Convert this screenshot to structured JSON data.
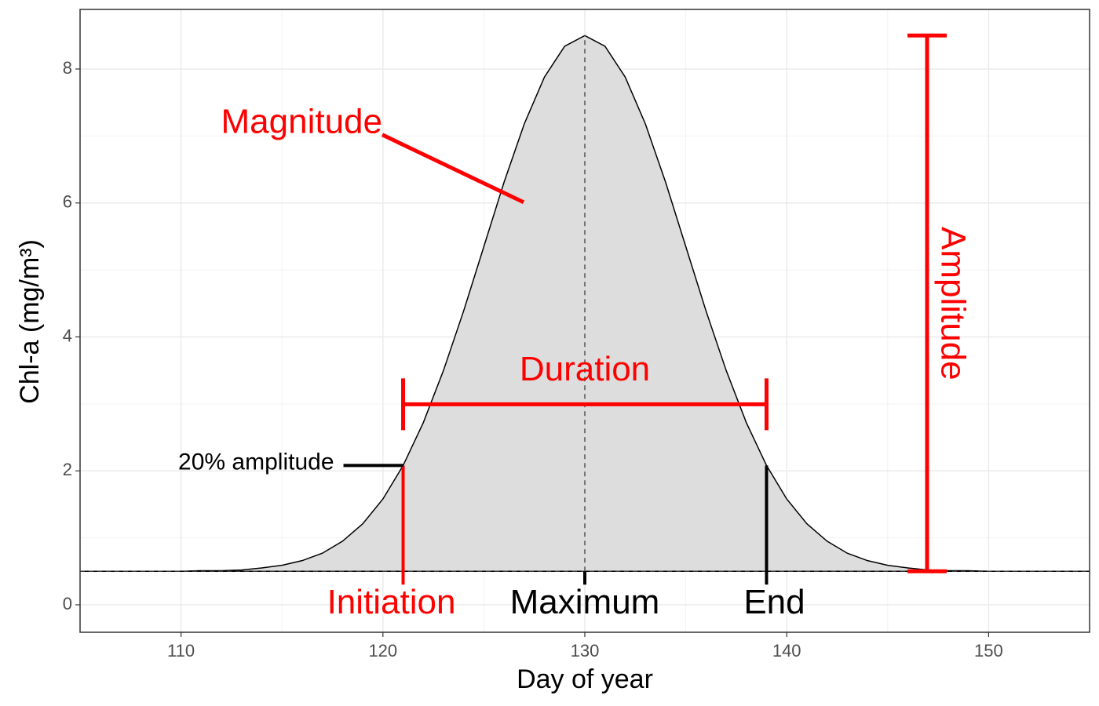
{
  "chart_data": {
    "type": "area",
    "x_label": "Day of year",
    "y_label": "Chl-a (mg/m³)",
    "x": [
      105,
      106,
      107,
      108,
      109,
      110,
      111,
      112,
      113,
      114,
      115,
      116,
      117,
      118,
      119,
      120,
      121,
      122,
      123,
      124,
      125,
      126,
      127,
      128,
      129,
      130,
      131,
      132,
      133,
      134,
      135,
      136,
      137,
      138,
      139,
      140,
      141,
      142,
      143,
      144,
      145,
      146,
      147,
      148,
      149,
      150,
      151,
      152,
      153,
      154,
      155
    ],
    "values": [
      0.5,
      0.5,
      0.5,
      0.5,
      0.5,
      0.5,
      0.51,
      0.51,
      0.52,
      0.55,
      0.59,
      0.66,
      0.77,
      0.95,
      1.21,
      1.58,
      2.08,
      2.72,
      3.5,
      4.39,
      5.35,
      6.31,
      7.18,
      7.88,
      8.34,
      8.5,
      8.34,
      7.88,
      7.18,
      6.31,
      5.35,
      4.39,
      3.5,
      2.72,
      2.08,
      1.58,
      1.21,
      0.95,
      0.77,
      0.66,
      0.59,
      0.55,
      0.52,
      0.51,
      0.51,
      0.5,
      0.5,
      0.5,
      0.5,
      0.5,
      0.5
    ],
    "color": "#dddddd",
    "xlim": [
      105,
      155
    ],
    "ylim": [
      -0.41,
      8.89
    ],
    "xticks": [
      110,
      120,
      130,
      140,
      150
    ],
    "yticks": [
      0,
      2,
      4,
      6,
      8
    ],
    "grid": true,
    "magnitude": {
      "label": "Magnitude"
    },
    "duration": {
      "label": "Duration",
      "start": 121,
      "end": 139
    },
    "amplitude": {
      "label": "Amplitude",
      "low": 0.5,
      "high": 8.5
    },
    "threshold": {
      "label": "20% amplitude",
      "value": 2.08
    },
    "initiation": {
      "label": "Initiation",
      "x": 121
    },
    "maximum": {
      "label": "Maximum",
      "x": 130
    },
    "end": {
      "label": "End",
      "x": 139
    }
  }
}
